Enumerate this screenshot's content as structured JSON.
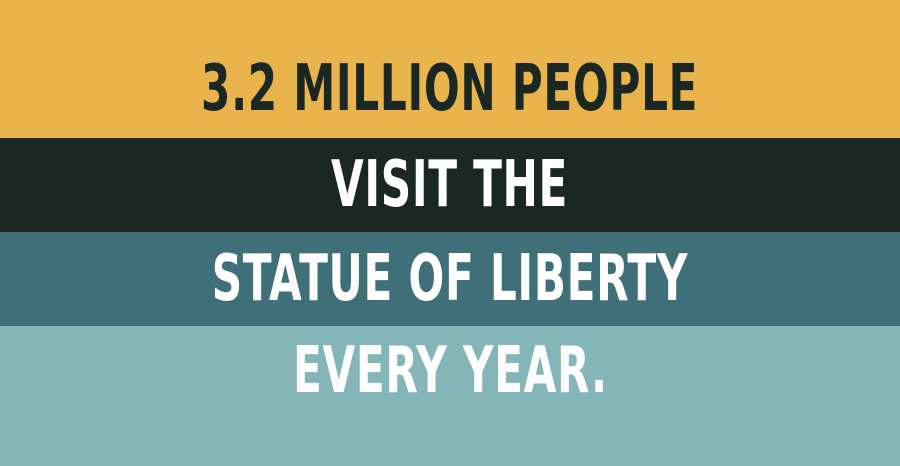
{
  "lines": [
    {
      "text": "3.2 MILLION PEOPLE",
      "background": "#e8b44b",
      "color": "#1b2723"
    },
    {
      "text": "VISIT THE",
      "background": "#1b2723",
      "color": "#ffffff"
    },
    {
      "text": "STATUE OF LIBERTY",
      "background": "#3f6f79",
      "color": "#ffffff"
    },
    {
      "text": "EVERY YEAR.",
      "background": "#83b5b9",
      "color": "#ffffff"
    }
  ]
}
